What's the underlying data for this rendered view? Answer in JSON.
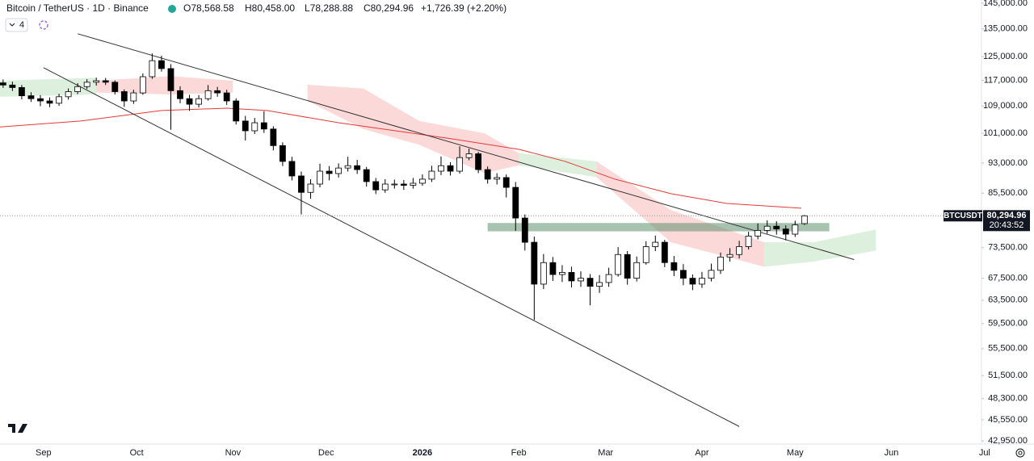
{
  "header": {
    "symbol": "Bitcoin / TetherUS · 1D · Binance",
    "ohlc": [
      "O78,568.58",
      "H80,458.00",
      "L78,288.88",
      "C80,294.96",
      "+1,726.39 (+2.20%)"
    ],
    "interval_badge": "4"
  },
  "chart_data": {
    "type": "candlestick",
    "x": [
      "2025-08-19",
      "2025-08-22",
      "2025-08-25",
      "2025-08-28",
      "2025-08-31",
      "2025-09-03",
      "2025-09-06",
      "2025-09-09",
      "2025-09-12",
      "2025-09-15",
      "2025-09-18",
      "2025-09-21",
      "2025-09-24",
      "2025-09-27",
      "2025-09-30",
      "2025-10-03",
      "2025-10-06",
      "2025-10-09",
      "2025-10-12",
      "2025-10-15",
      "2025-10-18",
      "2025-10-21",
      "2025-10-24",
      "2025-10-27",
      "2025-10-30",
      "2025-11-02",
      "2025-11-05",
      "2025-11-08",
      "2025-11-11",
      "2025-11-14",
      "2025-11-17",
      "2025-11-20",
      "2025-11-23",
      "2025-11-26",
      "2025-11-29",
      "2025-12-02",
      "2025-12-05",
      "2025-12-08",
      "2025-12-11",
      "2025-12-14",
      "2025-12-17",
      "2025-12-20",
      "2025-12-23",
      "2025-12-26",
      "2025-12-29",
      "2026-01-01",
      "2026-01-04",
      "2026-01-07",
      "2026-01-10",
      "2026-01-13",
      "2026-01-16",
      "2026-01-19",
      "2026-01-22",
      "2026-01-25",
      "2026-01-28",
      "2026-01-31",
      "2026-02-03",
      "2026-02-06",
      "2026-02-09",
      "2026-02-12",
      "2026-02-15",
      "2026-02-18",
      "2026-02-21",
      "2026-02-24",
      "2026-02-27",
      "2026-03-02",
      "2026-03-05",
      "2026-03-08",
      "2026-03-11",
      "2026-03-14",
      "2026-03-17",
      "2026-03-20",
      "2026-03-23",
      "2026-03-26",
      "2026-03-29",
      "2026-04-01",
      "2026-04-04",
      "2026-04-07",
      "2026-04-10",
      "2026-04-13",
      "2026-04-16",
      "2026-04-19",
      "2026-04-22",
      "2026-04-25",
      "2026-04-28",
      "2026-05-01",
      "2026-05-04"
    ],
    "open": [
      116200,
      115500,
      114700,
      112100,
      111200,
      110500,
      109800,
      111800,
      113400,
      115000,
      116400,
      116900,
      116400,
      113400,
      110500,
      113000,
      118200,
      123600,
      120900,
      113700,
      111200,
      109500,
      111200,
      113700,
      113000,
      110500,
      104500,
      101700,
      104000,
      102200,
      97600,
      93400,
      89700,
      85700,
      87700,
      90900,
      90300,
      91700,
      92300,
      91300,
      88300,
      86300,
      87700,
      87700,
      87400,
      87900,
      88900,
      90900,
      92300,
      90900,
      94400,
      95400,
      91300,
      88900,
      89300,
      86900,
      79800,
      74600,
      66400,
      70500,
      68200,
      68600,
      67000,
      67500,
      66000,
      66700,
      68200,
      72100,
      67500,
      70500,
      73700,
      74600,
      70500,
      69000,
      67500,
      66400,
      67500,
      69000,
      71600,
      72100,
      73700,
      75900,
      77100,
      78000,
      77400,
      76300,
      78568.58
    ],
    "high": [
      117300,
      116600,
      115500,
      113200,
      112300,
      111600,
      112700,
      114400,
      116100,
      117400,
      117900,
      117800,
      117000,
      114100,
      114000,
      119300,
      126100,
      125300,
      122400,
      115100,
      112400,
      112300,
      115500,
      114900,
      114000,
      111300,
      106000,
      105400,
      107400,
      103000,
      98500,
      94600,
      90800,
      88900,
      92800,
      92200,
      92900,
      94600,
      93800,
      92000,
      89200,
      88900,
      88800,
      88700,
      89200,
      90100,
      92300,
      94700,
      93200,
      97400,
      96800,
      95900,
      92100,
      90400,
      90100,
      88200,
      80600,
      75800,
      72200,
      71600,
      70000,
      69700,
      68800,
      68300,
      68100,
      69500,
      73600,
      72800,
      71700,
      74800,
      76000,
      75100,
      71800,
      70200,
      68200,
      68700,
      70300,
      72500,
      73400,
      74900,
      76800,
      78600,
      79300,
      79100,
      78200,
      79200,
      80458
    ],
    "low": [
      114600,
      113600,
      111000,
      110200,
      108900,
      108600,
      109000,
      110900,
      112600,
      114200,
      115300,
      115500,
      112500,
      108700,
      109600,
      112400,
      117500,
      119900,
      102000,
      109800,
      107500,
      108500,
      110600,
      111800,
      109300,
      103500,
      99000,
      100800,
      101100,
      96300,
      92200,
      88600,
      80600,
      84200,
      86900,
      88600,
      89300,
      90800,
      90200,
      87100,
      85300,
      85600,
      86600,
      86300,
      86600,
      87300,
      88200,
      89900,
      89800,
      90300,
      93700,
      90400,
      87800,
      87600,
      84500,
      77000,
      72900,
      60100,
      65500,
      67000,
      66800,
      65800,
      65900,
      62600,
      64800,
      65900,
      67800,
      66300,
      66900,
      70100,
      72800,
      69600,
      67900,
      66200,
      65300,
      65700,
      66900,
      68300,
      70700,
      71300,
      73100,
      75200,
      76400,
      76200,
      75000,
      75700,
      78288.88
    ],
    "close": [
      115500,
      114700,
      112100,
      111200,
      110500,
      109800,
      111800,
      113400,
      115000,
      116400,
      116900,
      116400,
      113400,
      110500,
      113000,
      118200,
      123600,
      120900,
      113700,
      111200,
      109500,
      111200,
      113700,
      113000,
      110500,
      104500,
      101700,
      104000,
      102200,
      97600,
      93400,
      89700,
      85700,
      87700,
      90900,
      90300,
      91700,
      92300,
      91300,
      88300,
      86300,
      87700,
      87700,
      87400,
      87900,
      88900,
      90900,
      92300,
      90900,
      94400,
      95400,
      91300,
      88900,
      89300,
      86900,
      79800,
      74600,
      66400,
      70500,
      68200,
      68600,
      67000,
      67500,
      66000,
      66700,
      68200,
      72100,
      67500,
      70500,
      73700,
      74600,
      70500,
      69000,
      67500,
      66400,
      67500,
      69000,
      71600,
      72100,
      73700,
      75900,
      77100,
      78000,
      77400,
      76300,
      78300,
      80294.96
    ],
    "up_color": "#ffffff",
    "down_color": "#000000",
    "edge_color": "#000000",
    "ylim": [
      42570,
      146300
    ],
    "log_scale": true,
    "grid": false,
    "yticks": [
      {
        "value": 145000,
        "label": "145,000.00"
      },
      {
        "value": 135000,
        "label": "135,000.00"
      },
      {
        "value": 125000,
        "label": "125,000.00"
      },
      {
        "value": 117000,
        "label": "117,000.00"
      },
      {
        "value": 109000,
        "label": "109,000.00"
      },
      {
        "value": 101000,
        "label": "101,000.00"
      },
      {
        "value": 93000,
        "label": "93,000.00"
      },
      {
        "value": 85500,
        "label": "85,500.00"
      },
      {
        "value": 73500,
        "label": "73,500.00"
      },
      {
        "value": 67500,
        "label": "67,500.00"
      },
      {
        "value": 63500,
        "label": "63,500.00"
      },
      {
        "value": 59500,
        "label": "59,500.00"
      },
      {
        "value": 55500,
        "label": "55,500.00"
      },
      {
        "value": 51500,
        "label": "51,500.00"
      },
      {
        "value": 48300,
        "label": "48,300.00"
      },
      {
        "value": 45550,
        "label": "45,550.00"
      },
      {
        "value": 42950,
        "label": "42,950.00"
      }
    ],
    "xlim": [
      "2025-08-18",
      "2026-06-30"
    ],
    "xticks": [
      {
        "value": "2025-09-01",
        "label": "Sep"
      },
      {
        "value": "2025-10-01",
        "label": "Oct"
      },
      {
        "value": "2025-11-01",
        "label": "Nov"
      },
      {
        "value": "2025-12-01",
        "label": "Dec"
      },
      {
        "value": "2026-01-01",
        "label": "2026"
      },
      {
        "value": "2026-02-01",
        "label": "Feb"
      },
      {
        "value": "2026-03-01",
        "label": "Mar"
      },
      {
        "value": "2026-04-01",
        "label": "Apr"
      },
      {
        "value": "2026-05-01",
        "label": "May"
      },
      {
        "value": "2026-06-01",
        "label": "Jun"
      },
      {
        "value": "2026-07-01",
        "label": "Jul"
      }
    ],
    "moving_average": {
      "color": "#e53935",
      "x": [
        "2025-08-18",
        "2025-09-13",
        "2025-10-09",
        "2025-10-30",
        "2025-11-12",
        "2025-12-05",
        "2026-01-11",
        "2026-02-01",
        "2026-02-16",
        "2026-03-04",
        "2026-03-22",
        "2026-04-09",
        "2026-05-03"
      ],
      "values": [
        102800,
        104500,
        107600,
        108300,
        107600,
        104000,
        99400,
        96600,
        93400,
        88900,
        85400,
        83100,
        82000
      ]
    },
    "trendlines": [
      {
        "color": "#333333",
        "x": [
          "2025-09-12",
          "2026-05-20"
        ],
        "values": [
          133200,
          71100
        ]
      },
      {
        "color": "#333333",
        "x": [
          "2025-09-01",
          "2026-04-13"
        ],
        "values": [
          121200,
          44700
        ]
      }
    ],
    "cloud": [
      {
        "color": "#66bb6a",
        "x": [
          "2025-08-18",
          "2025-09-18"
        ],
        "upper": [
          116900,
          117900
        ],
        "lower": [
          111800,
          112500
        ]
      },
      {
        "color": "#ef5350",
        "x": [
          "2025-09-18",
          "2025-10-12",
          "2025-11-01"
        ],
        "upper": [
          116900,
          118400,
          116900
        ],
        "lower": [
          113100,
          112500,
          113100
        ]
      },
      {
        "color": "#ef5350",
        "x": [
          "2025-11-25",
          "2025-12-13",
          "2025-12-31",
          "2026-01-21",
          "2026-02-01"
        ],
        "upper": [
          115600,
          114400,
          104500,
          101000,
          95600
        ],
        "lower": [
          110500,
          102200,
          97800,
          90400,
          92400
        ]
      },
      {
        "color": "#66bb6a",
        "x": [
          "2026-02-01",
          "2026-02-26"
        ],
        "upper": [
          95600,
          93400
        ],
        "lower": [
          92400,
          89400
        ]
      },
      {
        "color": "#ef5350",
        "x": [
          "2026-02-26",
          "2026-03-22",
          "2026-04-21"
        ],
        "upper": [
          93400,
          81600,
          74600
        ],
        "lower": [
          89400,
          74600,
          69700
        ]
      },
      {
        "color": "#66bb6a",
        "x": [
          "2026-04-21",
          "2026-05-07",
          "2026-05-27"
        ],
        "upper": [
          74600,
          74600,
          77300
        ],
        "lower": [
          69700,
          70700,
          72900
        ]
      }
    ],
    "zone": {
      "color": "#5f8f6c",
      "x": [
        "2026-01-22",
        "2026-05-12"
      ],
      "values": [
        76900,
        78700
      ]
    },
    "last_price": {
      "symbol": "BTCUSDT",
      "value": 80294.96,
      "label": "80,294.96",
      "countdown": "20:43:52"
    }
  }
}
